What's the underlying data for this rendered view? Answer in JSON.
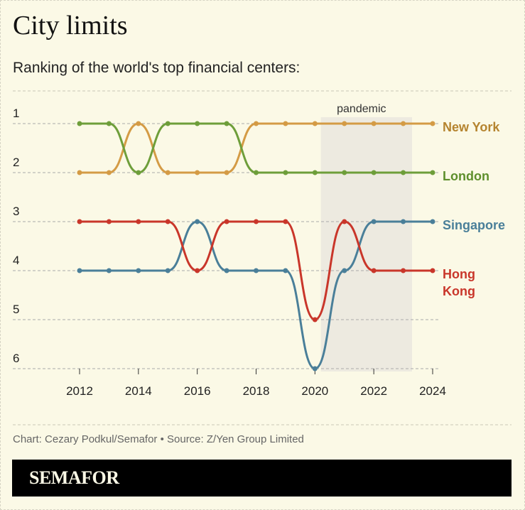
{
  "title": "City limits",
  "subtitle": "Ranking of the world's top financial centers:",
  "source": "Chart: Cezary Podkul/Semafor • Source: Z/Yen Group Limited",
  "brand": "SEMAFOR",
  "chart_data": {
    "type": "line",
    "x": [
      2012,
      2013,
      2014,
      2015,
      2016,
      2017,
      2018,
      2019,
      2020,
      2021,
      2022,
      2023,
      2024
    ],
    "x_ticks": [
      "2012",
      "2014",
      "2016",
      "2018",
      "2020",
      "2022",
      "2024"
    ],
    "y_ticks": [
      "1",
      "2",
      "3",
      "4",
      "5",
      "6"
    ],
    "ylim": [
      1,
      6
    ],
    "y_inverted": true,
    "grid": true,
    "annotation": {
      "label": "pandemic",
      "x_range": [
        2020.2,
        2023.3
      ],
      "color": "#edeae0"
    },
    "series": [
      {
        "name": "New York",
        "color": "#d49b45",
        "label_color": "#b5842f",
        "values": [
          2,
          2,
          1,
          2,
          2,
          2,
          1,
          1,
          1,
          1,
          1,
          1,
          1
        ]
      },
      {
        "name": "London",
        "color": "#6e9e3a",
        "label_color": "#5e8f2c",
        "values": [
          1,
          1,
          2,
          1,
          1,
          1,
          2,
          2,
          2,
          2,
          2,
          2,
          2
        ]
      },
      {
        "name": "Singapore",
        "color": "#4a7f99",
        "label_color": "#4a7f99",
        "values": [
          4,
          4,
          4,
          4,
          3,
          4,
          4,
          4,
          6,
          4,
          3,
          3,
          3
        ]
      },
      {
        "name": "Hong Kong",
        "label_lines": [
          "Hong",
          "Kong"
        ],
        "color": "#c9362a",
        "label_color": "#c9362a",
        "values": [
          3,
          3,
          3,
          3,
          4,
          3,
          3,
          3,
          5,
          3,
          4,
          4,
          4
        ]
      }
    ]
  }
}
